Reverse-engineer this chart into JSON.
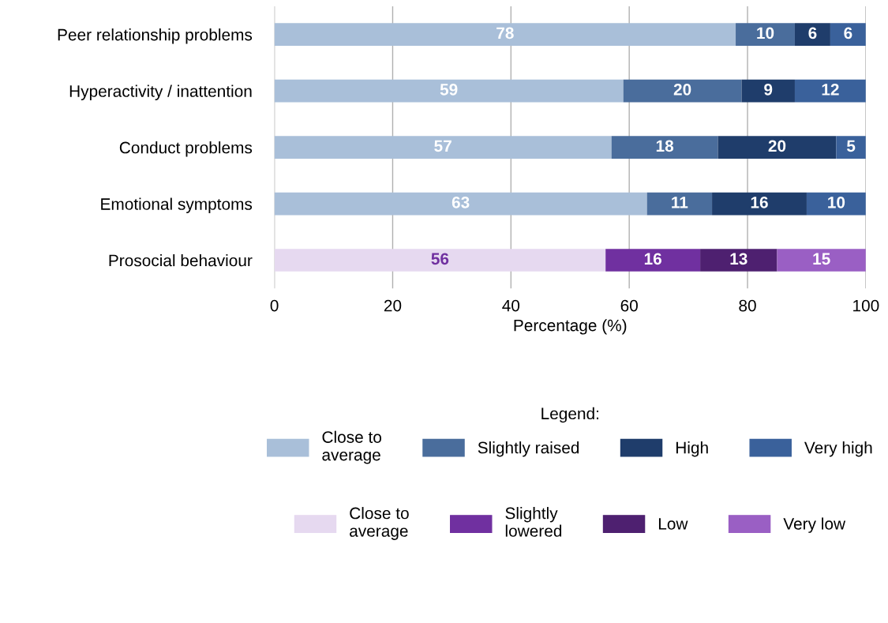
{
  "chart_data": {
    "type": "bar",
    "orientation": "horizontal",
    "stacked": true,
    "data_labels": true,
    "grid": "x",
    "legend": "bottom",
    "legend_title": "Legend:",
    "categories": [
      "Peer relationship problems",
      "Hyperactivity / inattention",
      "Conduct problems",
      "Emotional symptoms",
      "Prosocial behaviour"
    ],
    "xlabel": "Percentage (%)",
    "xlim": [
      0,
      100
    ],
    "xticks": [
      0,
      20,
      40,
      60,
      80,
      100
    ],
    "series": [
      {
        "name": "Close to\naverage",
        "color": "#a9bfd9",
        "values": [
          78,
          59,
          57,
          63,
          null
        ]
      },
      {
        "name": "Slightly raised",
        "color": "#4a6d9c",
        "values": [
          10,
          20,
          18,
          11,
          null
        ]
      },
      {
        "name": "High",
        "color": "#1f3d6b",
        "values": [
          6,
          9,
          20,
          16,
          null
        ]
      },
      {
        "name": "Very high",
        "color": "#3a619b",
        "values": [
          6,
          12,
          5,
          10,
          null
        ]
      },
      {
        "name": "Close to\naverage",
        "color": "#e6d9f0",
        "values": [
          null,
          null,
          null,
          null,
          56
        ]
      },
      {
        "name": "Slightly\nlowered",
        "color": "#7030a0",
        "values": [
          null,
          null,
          null,
          null,
          16
        ]
      },
      {
        "name": "Low",
        "color": "#4e2070",
        "values": [
          null,
          null,
          null,
          null,
          13
        ]
      },
      {
        "name": "Very low",
        "color": "#9a5fc4",
        "values": [
          null,
          null,
          null,
          null,
          15
        ]
      }
    ]
  }
}
